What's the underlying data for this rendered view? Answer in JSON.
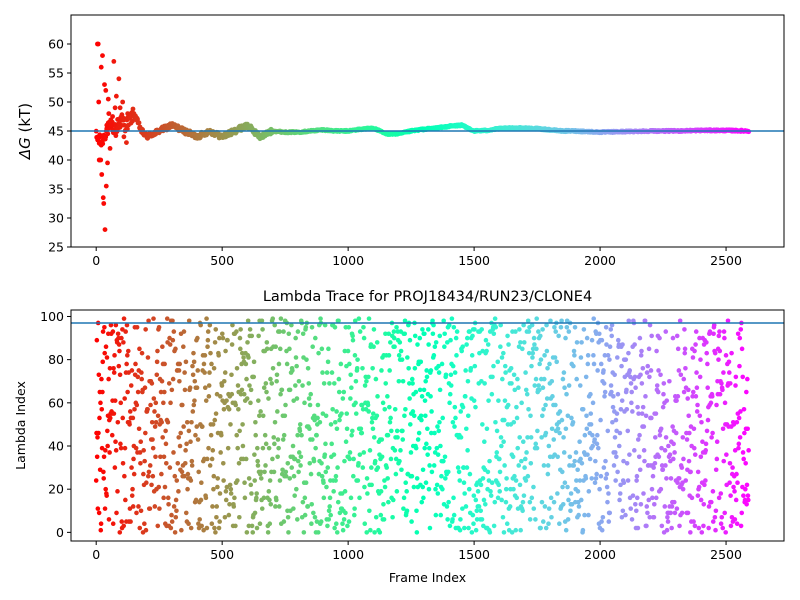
{
  "chart_data": [
    {
      "type": "scatter",
      "title": "",
      "xlabel": "",
      "ylabel": "ΔG (kT)",
      "ylabel_symbol": "ΔG",
      "ylabel_unit": "(kT)",
      "xlim": [
        -100,
        2730
      ],
      "ylim": [
        25,
        65
      ],
      "xticks": [
        0,
        500,
        1000,
        1500,
        2000,
        2500
      ],
      "yticks": [
        25,
        30,
        35,
        40,
        45,
        50,
        55,
        60
      ],
      "hline": 45,
      "hline_color": "#1f77b4",
      "colormap": "rainbow",
      "n_frames": 2600,
      "grid": false,
      "convergence_trace": {
        "x": [
          0,
          20,
          40,
          60,
          80,
          100,
          120,
          150,
          180,
          200,
          250,
          300,
          350,
          400,
          450,
          500,
          550,
          600,
          650,
          700,
          750,
          800,
          850,
          900,
          950,
          1000,
          1050,
          1100,
          1150,
          1200,
          1250,
          1300,
          1350,
          1400,
          1450,
          1500,
          1550,
          1600,
          1650,
          1700,
          1750,
          1800,
          1850,
          1900,
          1950,
          2000,
          2100,
          2200,
          2300,
          2400,
          2500,
          2590
        ],
        "y": [
          44,
          43,
          45,
          46,
          45,
          47,
          46,
          48,
          45,
          44,
          45,
          46,
          45,
          44,
          45,
          44,
          45,
          46,
          44,
          45,
          44.8,
          44.8,
          45,
          45.2,
          45,
          45,
          45.3,
          45.5,
          44.5,
          44.5,
          45,
          45.3,
          45.5,
          45.8,
          46,
          45,
          45.1,
          45.4,
          45.5,
          45.5,
          45.4,
          45.2,
          45,
          45,
          44.9,
          44.8,
          44.9,
          45,
          45,
          45.1,
          45.1,
          45
        ]
      },
      "outliers": {
        "x": [
          5,
          8,
          10,
          12,
          14,
          18,
          20,
          22,
          25,
          28,
          30,
          33,
          35,
          38,
          40,
          42,
          45,
          48,
          50,
          55,
          60,
          65,
          70,
          75,
          80,
          85,
          90,
          95,
          100,
          105,
          110,
          115,
          120,
          125
        ],
        "y": [
          60,
          60,
          50,
          40,
          40,
          40,
          56,
          37.5,
          58,
          33.5,
          32.5,
          53,
          28,
          52,
          35.5,
          46,
          39.5,
          50.5,
          48,
          42,
          46,
          47.5,
          57,
          49,
          51,
          47,
          54,
          49,
          46,
          50,
          44,
          45,
          43,
          48
        ]
      }
    },
    {
      "type": "scatter",
      "title": "Lambda Trace for PROJ18434/RUN23/CLONE4",
      "xlabel": "Frame Index",
      "ylabel": "Lambda Index",
      "xlim": [
        -100,
        2730
      ],
      "ylim": [
        -4,
        103
      ],
      "xticks": [
        0,
        500,
        1000,
        1500,
        2000,
        2500
      ],
      "yticks": [
        0,
        20,
        40,
        60,
        80,
        100
      ],
      "hline": 97,
      "hline_color": "#1f77b4",
      "colormap": "rainbow",
      "n_frames": 2600,
      "lambda_range": [
        0,
        99
      ],
      "grid": false
    }
  ]
}
